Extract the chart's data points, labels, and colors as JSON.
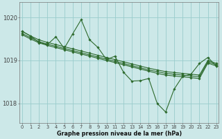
{
  "title": "Graphe pression niveau de la mer (hPa)",
  "background_color": "#cce8e8",
  "grid_color": "#99cccc",
  "line_color": "#2d6a2d",
  "marker_color": "#2d6a2d",
  "x_ticks": [
    0,
    1,
    2,
    3,
    4,
    5,
    6,
    7,
    8,
    9,
    10,
    11,
    12,
    13,
    14,
    15,
    16,
    17,
    18,
    19,
    20,
    21,
    22,
    23
  ],
  "y_ticks": [
    1018,
    1019,
    1020
  ],
  "ylim": [
    1017.55,
    1020.35
  ],
  "xlim": [
    -0.3,
    23.3
  ],
  "smooth1": [
    1019.68,
    1019.57,
    1019.48,
    1019.42,
    1019.37,
    1019.32,
    1019.27,
    1019.22,
    1019.17,
    1019.12,
    1019.07,
    1019.02,
    1018.97,
    1018.92,
    1018.87,
    1018.82,
    1018.78,
    1018.74,
    1018.72,
    1018.7,
    1018.68,
    1018.66,
    1019.0,
    1018.93
  ],
  "smooth2": [
    1019.63,
    1019.53,
    1019.44,
    1019.38,
    1019.33,
    1019.28,
    1019.23,
    1019.18,
    1019.13,
    1019.08,
    1019.03,
    1018.98,
    1018.93,
    1018.88,
    1018.83,
    1018.78,
    1018.74,
    1018.7,
    1018.68,
    1018.66,
    1018.64,
    1018.62,
    1018.97,
    1018.9
  ],
  "smooth3": [
    1019.6,
    1019.5,
    1019.41,
    1019.35,
    1019.3,
    1019.25,
    1019.2,
    1019.15,
    1019.1,
    1019.05,
    1019.0,
    1018.95,
    1018.9,
    1018.85,
    1018.8,
    1018.75,
    1018.7,
    1018.66,
    1018.64,
    1018.62,
    1018.6,
    1018.58,
    1018.94,
    1018.87
  ],
  "spiky": [
    1019.68,
    1019.57,
    1019.42,
    1019.37,
    1019.55,
    1019.28,
    1019.62,
    1019.95,
    1019.48,
    1019.3,
    1019.02,
    1019.1,
    1018.73,
    1018.52,
    1018.53,
    1018.58,
    1018.0,
    1017.8,
    1018.33,
    1018.63,
    1018.68,
    1018.93,
    1019.07,
    1018.87
  ]
}
